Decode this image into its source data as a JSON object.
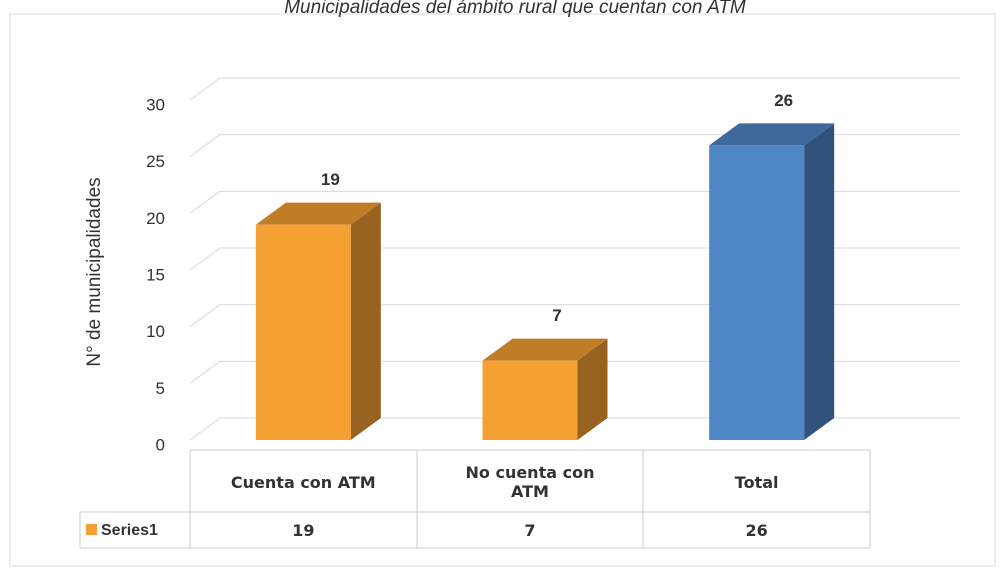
{
  "chart_data": {
    "type": "bar3d",
    "title": "Municipalidades del ámbito rural que cuentan con ATM",
    "y_label": "N° de municipalidades",
    "categories": [
      "Cuenta con ATM",
      "No cuenta con ATM",
      "Total"
    ],
    "series": [
      {
        "name": "Series1",
        "color": "#f5a033",
        "point_colors": [
          "#f5a033",
          "#f5a033",
          "#4f86c6"
        ],
        "values": [
          19,
          7,
          26
        ]
      }
    ],
    "ylim": [
      0,
      30
    ],
    "yticks": [
      0,
      5,
      10,
      15,
      20,
      25,
      30
    ],
    "grid": true,
    "data_table": true
  }
}
